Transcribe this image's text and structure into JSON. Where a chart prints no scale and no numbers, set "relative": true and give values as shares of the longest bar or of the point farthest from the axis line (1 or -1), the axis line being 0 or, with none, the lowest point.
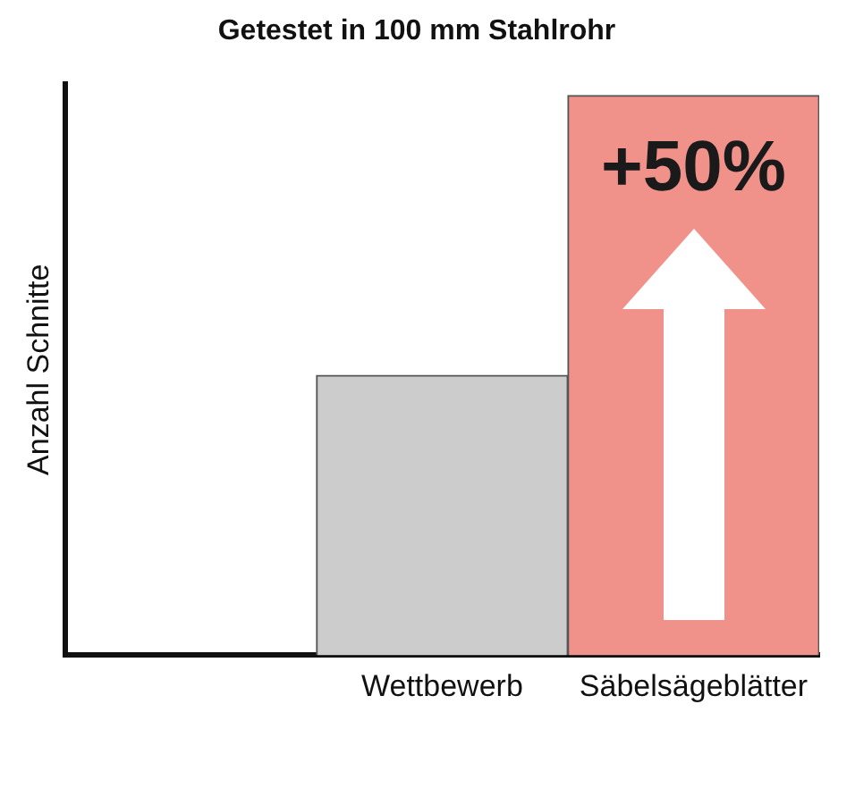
{
  "chart_data": {
    "type": "bar",
    "title": "Getestet in 100 mm Stahlrohr",
    "ylabel": "Anzahl Schnitte",
    "relative": true,
    "categories": [
      null,
      "Wettbewerb",
      "Säbelsägeblätter"
    ],
    "values": [
      null,
      0.5,
      1
    ],
    "colors": [
      "#cccccc",
      "#cccccc",
      "#f0918a"
    ],
    "annotations": [
      {
        "text": "+50%",
        "x": "Säbelsägeblätter",
        "y": 1
      }
    ],
    "grid": false,
    "legend": false
  }
}
